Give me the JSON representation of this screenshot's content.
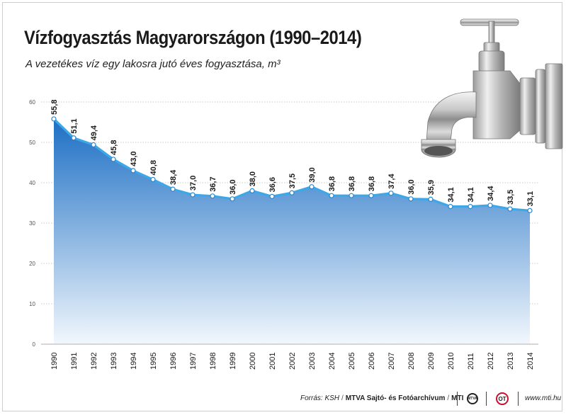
{
  "chart_data": {
    "type": "area",
    "title": "Vízfogyasztás Magyarországon (1990–2014)",
    "subtitle": "A vezetékes víz egy lakosra jutó éves fogyasztása, m³",
    "x": [
      "1990",
      "1991",
      "1992",
      "1993",
      "1994",
      "1995",
      "1996",
      "1997",
      "1998",
      "1999",
      "2000",
      "2001",
      "2002",
      "2003",
      "2004",
      "2005",
      "2006",
      "2007",
      "2008",
      "2009",
      "2010",
      "2011",
      "2012",
      "2013",
      "2014"
    ],
    "values": [
      55.8,
      51.1,
      49.4,
      45.8,
      43.0,
      40.8,
      38.4,
      37.0,
      36.7,
      36.0,
      38.0,
      36.6,
      37.5,
      39.0,
      36.8,
      36.8,
      36.8,
      37.4,
      36.0,
      35.9,
      34.1,
      34.1,
      34.4,
      33.5,
      33.1
    ],
    "data_labels": [
      "55,8",
      "51,1",
      "49,4",
      "45,8",
      "43,0",
      "40,8",
      "38,4",
      "37,0",
      "36,7",
      "36,0",
      "38,0",
      "36,6",
      "37,5",
      "39,0",
      "36,8",
      "36,8",
      "36,8",
      "37,4",
      "36,0",
      "35,9",
      "34,1",
      "34,1",
      "34,4",
      "33,5",
      "33,1"
    ],
    "yticks": [
      0,
      10,
      20,
      30,
      40,
      50,
      60
    ],
    "ylim": [
      0,
      60
    ],
    "grid": true,
    "colors": {
      "area_top": "#1d6fc4",
      "area_bottom": "#f2f7fd",
      "line": "#3ea7e6",
      "marker": "#ffffff"
    }
  },
  "footer": {
    "source": "Forrás: KSH",
    "agency": "MTVA Sajtó- és Fotóarchívum",
    "mti": "MTI",
    "logo1_text": "MTVA",
    "logo2_text": "OT",
    "website": "www.mti.hu"
  },
  "icons": {
    "illustration": "water-faucet-icon"
  }
}
